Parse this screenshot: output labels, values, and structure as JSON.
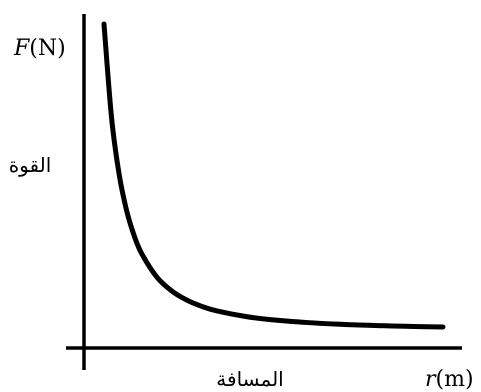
{
  "chart_data": {
    "type": "line",
    "title": "",
    "y_axis": {
      "symbol": "F",
      "unit": "(N)",
      "name": "القوة"
    },
    "x_axis": {
      "symbol": "r",
      "unit": "(m)",
      "name": "المسافة"
    },
    "grid": false,
    "tick_labels": false,
    "series": [
      {
        "values_description": "inverse-square decay",
        "x": [
          0.5,
          0.6,
          0.7,
          0.8,
          0.9,
          1.0,
          1.2,
          1.4,
          1.6,
          1.8,
          2.0,
          2.4,
          2.8,
          3.2,
          3.6,
          4.0,
          4.5,
          5.0
        ],
        "y": [
          4.0,
          2.778,
          2.041,
          1.5625,
          1.235,
          1.0,
          0.694,
          0.51,
          0.391,
          0.309,
          0.25,
          0.174,
          0.128,
          0.098,
          0.077,
          0.0625,
          0.049,
          0.04
        ]
      }
    ],
    "colors": {
      "axes": "#000000",
      "curve": "#000000",
      "background": "#ffffff"
    }
  }
}
